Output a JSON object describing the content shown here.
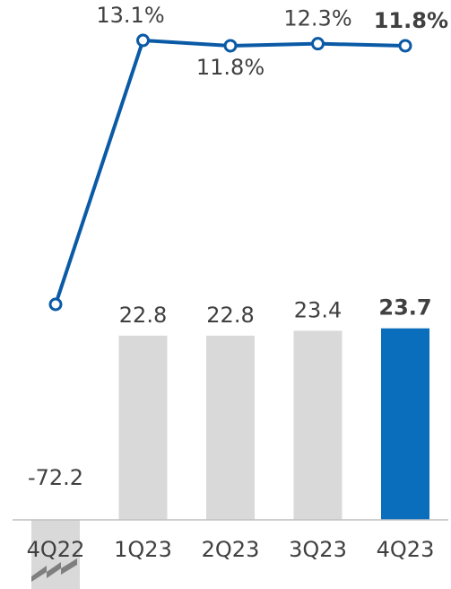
{
  "chart_data": {
    "type": "bar+line",
    "categories": [
      "4Q22",
      "1Q23",
      "2Q23",
      "3Q23",
      "4Q23"
    ],
    "bars": {
      "values": [
        -72.2,
        22.8,
        22.8,
        23.4,
        23.7
      ],
      "labels": [
        "-72.2",
        "22.8",
        "22.8",
        "23.4",
        "23.7"
      ],
      "colors": [
        "#d9d9d9",
        "#d9d9d9",
        "#d9d9d9",
        "#d9d9d9",
        "#0a6ebd"
      ],
      "broken_axis_bar_index": 0
    },
    "line": {
      "values": [
        null,
        13.1,
        11.8,
        12.3,
        11.8
      ],
      "labels": [
        "",
        "13.1%",
        "11.8%",
        "12.3%",
        "11.8%"
      ],
      "color": "#0b5aa6"
    },
    "highlight_index": 4,
    "title": "",
    "xlabel": "",
    "ylabel": ""
  }
}
